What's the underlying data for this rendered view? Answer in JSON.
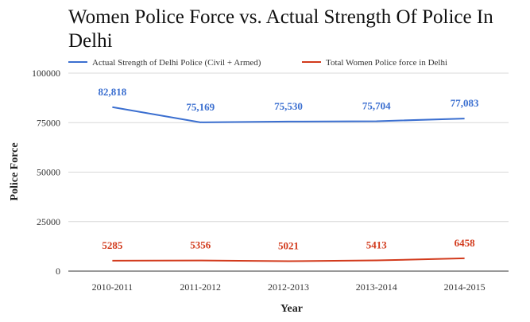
{
  "chart_data": {
    "type": "line",
    "title_lines": [
      "Women Police Force vs. Actual Strength Of Police In",
      "Delhi"
    ],
    "xlabel": "Year",
    "ylabel": "Police Force",
    "ylim": [
      0,
      100000
    ],
    "yticks": [
      "0",
      "25000",
      "50000",
      "75000",
      "100000"
    ],
    "ytick_values": [
      0,
      25000,
      50000,
      75000,
      100000
    ],
    "grid": true,
    "legend_position": "top",
    "categories": [
      "2010-2011",
      "2011-2012",
      "2012-2013",
      "2013-2014",
      "2014-2015"
    ],
    "series": [
      {
        "name": "Actual Strength of Delhi Police (Civil + Armed)",
        "color": "#3b6fd0",
        "values": [
          82818,
          75169,
          75530,
          75704,
          77083
        ],
        "labels": [
          "82,818",
          "75,169",
          "75,530",
          "75,704",
          "77,083"
        ]
      },
      {
        "name": "Total Women Police force in Delhi",
        "color": "#d23a1c",
        "values": [
          5285,
          5356,
          5021,
          5413,
          6458
        ],
        "labels": [
          "5285",
          "5356",
          "5021",
          "5413",
          "6458"
        ]
      }
    ]
  }
}
